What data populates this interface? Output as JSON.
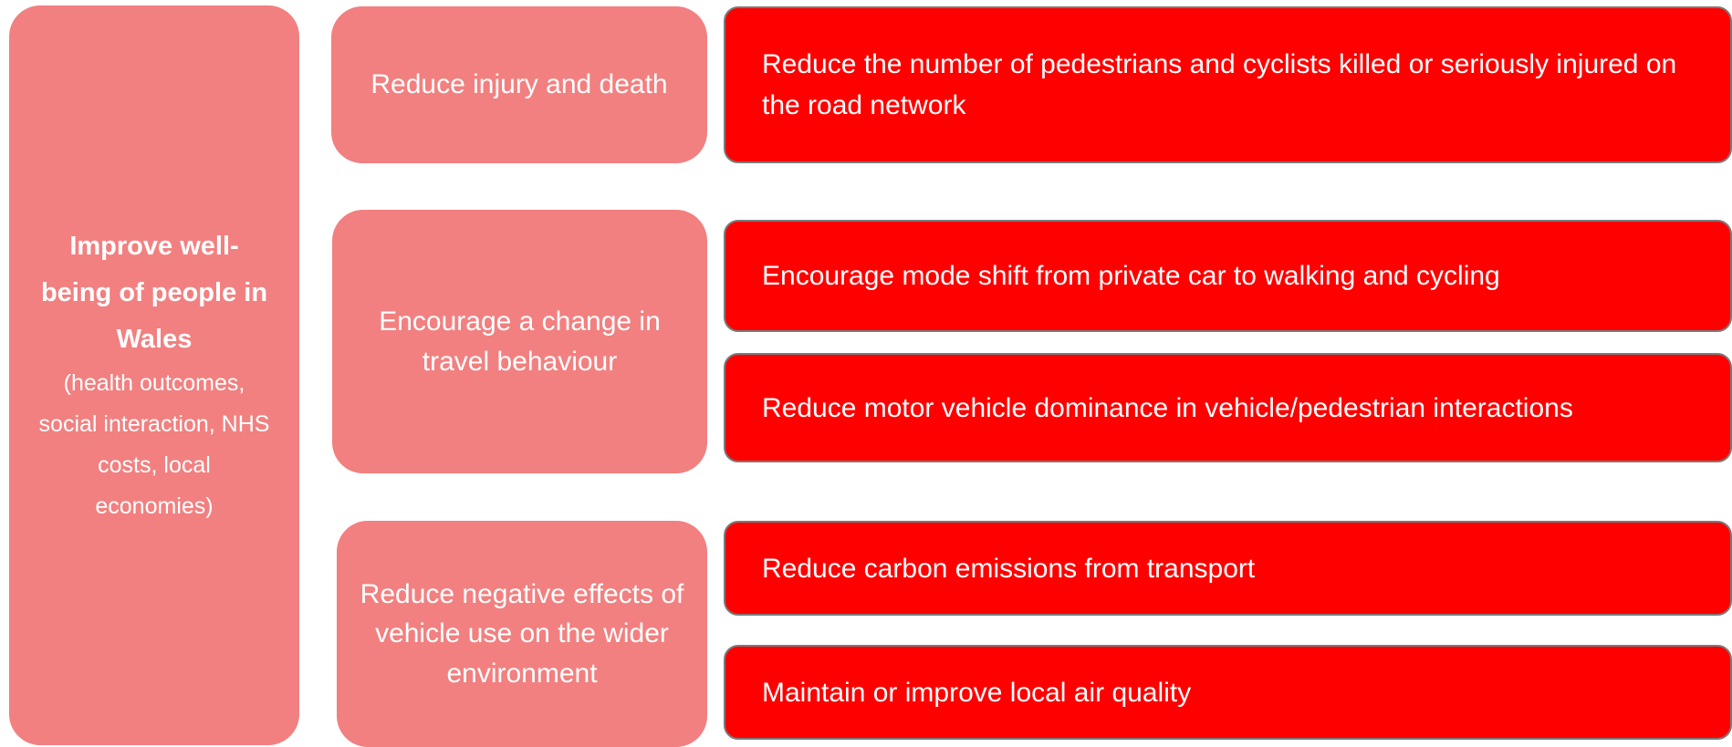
{
  "goal": {
    "title": "Improve well-being of people in Wales",
    "subtitle": "(health outcomes, social interaction, NHS costs, local economies)"
  },
  "groups": [
    {
      "objective": "Reduce injury and death",
      "outcomes": [
        "Reduce the number of pedestrians and cyclists killed or seriously injured on the road network"
      ]
    },
    {
      "objective": "Encourage a change in travel behaviour",
      "outcomes": [
        "Encourage mode shift from private car to walking and cycling",
        "Reduce motor vehicle dominance in vehicle/pedestrian interactions"
      ]
    },
    {
      "objective": "Reduce negative effects of vehicle use on the wider environment",
      "outcomes": [
        "Reduce carbon emissions from transport",
        "Maintain or improve local air quality"
      ]
    }
  ]
}
